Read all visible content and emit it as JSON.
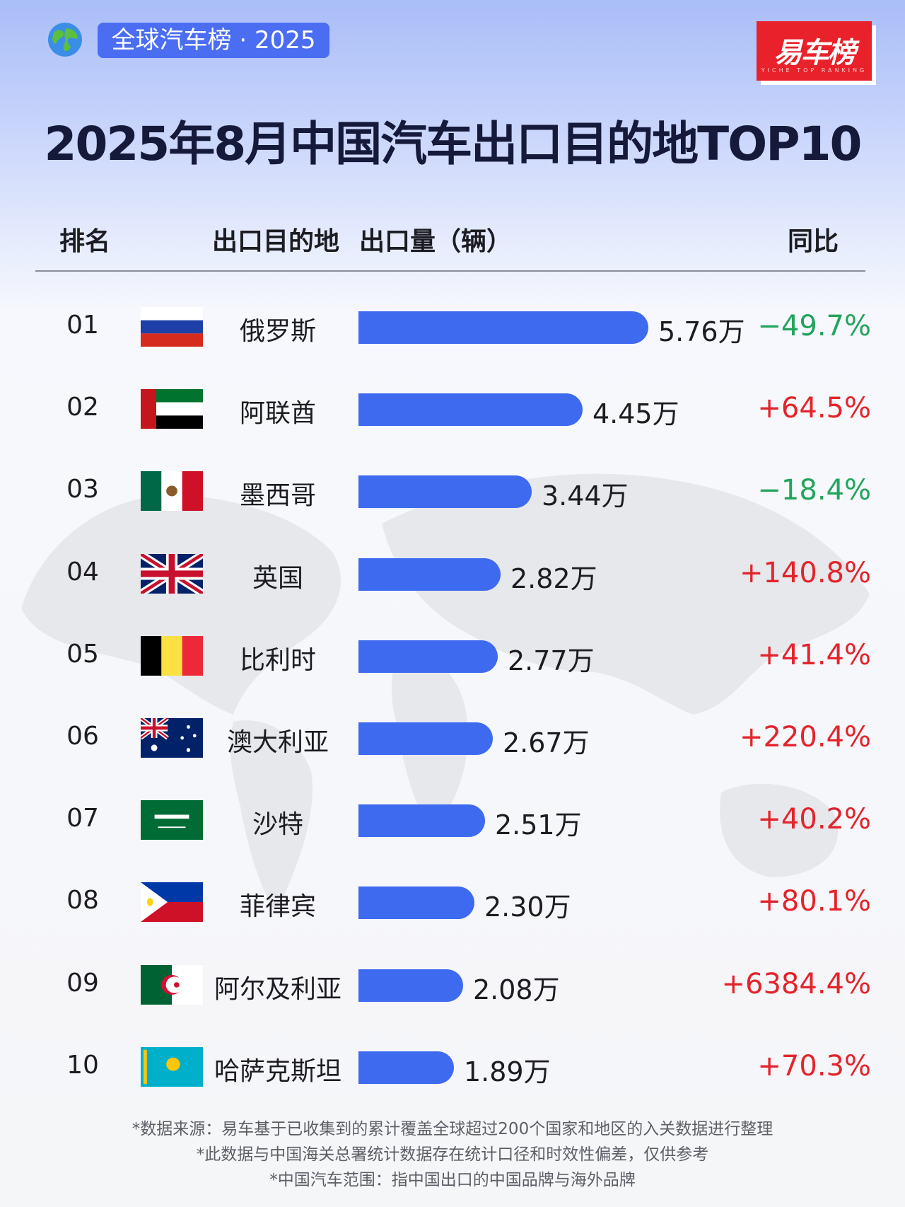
{
  "header": {
    "tag": "全球汽车榜 · 2025",
    "logo": "易车榜",
    "logo_sub": "YICHE TOP RANKING",
    "title": "2025年8月中国汽车出口目的地TOP10"
  },
  "columns": {
    "rank": "排名",
    "destination": "出口目的地",
    "volume": "出口量（辆）",
    "yoy": "同比"
  },
  "colors": {
    "bar": "#3e6af0",
    "positive": "#e3242b",
    "negative": "#22a45d"
  },
  "chart_data": {
    "type": "bar",
    "orientation": "horizontal",
    "value_unit": "万辆",
    "categories": [
      "俄罗斯",
      "阿联酋",
      "墨西哥",
      "英国",
      "比利时",
      "澳大利亚",
      "沙特",
      "菲律宾",
      "阿尔及利亚",
      "哈萨克斯坦"
    ],
    "series": [
      {
        "values": [
          5.76,
          4.45,
          3.44,
          2.82,
          2.77,
          2.67,
          2.51,
          2.3,
          2.08,
          1.89
        ]
      }
    ],
    "rows": [
      {
        "rank": "01",
        "country": "俄罗斯",
        "flag": "russia-flag",
        "value": 5.76,
        "value_label": "5.76万",
        "yoy": "−49.7%",
        "yoy_sign": "negative"
      },
      {
        "rank": "02",
        "country": "阿联酋",
        "flag": "uae-flag",
        "value": 4.45,
        "value_label": "4.45万",
        "yoy": "+64.5%",
        "yoy_sign": "positive"
      },
      {
        "rank": "03",
        "country": "墨西哥",
        "flag": "mexico-flag",
        "value": 3.44,
        "value_label": "3.44万",
        "yoy": "−18.4%",
        "yoy_sign": "negative"
      },
      {
        "rank": "04",
        "country": "英国",
        "flag": "uk-flag",
        "value": 2.82,
        "value_label": "2.82万",
        "yoy": "+140.8%",
        "yoy_sign": "positive"
      },
      {
        "rank": "05",
        "country": "比利时",
        "flag": "belgium-flag",
        "value": 2.77,
        "value_label": "2.77万",
        "yoy": "+41.4%",
        "yoy_sign": "positive"
      },
      {
        "rank": "06",
        "country": "澳大利亚",
        "flag": "australia-flag",
        "value": 2.67,
        "value_label": "2.67万",
        "yoy": "+220.4%",
        "yoy_sign": "positive"
      },
      {
        "rank": "07",
        "country": "沙特",
        "flag": "saudi-flag",
        "value": 2.51,
        "value_label": "2.51万",
        "yoy": "+40.2%",
        "yoy_sign": "positive"
      },
      {
        "rank": "08",
        "country": "菲律宾",
        "flag": "philippines-flag",
        "value": 2.3,
        "value_label": "2.30万",
        "yoy": "+80.1%",
        "yoy_sign": "positive"
      },
      {
        "rank": "09",
        "country": "阿尔及利亚",
        "flag": "algeria-flag",
        "value": 2.08,
        "value_label": "2.08万",
        "yoy": "+6384.4%",
        "yoy_sign": "positive"
      },
      {
        "rank": "10",
        "country": "哈萨克斯坦",
        "flag": "kazakhstan-flag",
        "value": 1.89,
        "value_label": "1.89万",
        "yoy": "+70.3%",
        "yoy_sign": "positive"
      }
    ]
  },
  "footer": {
    "note1": "*数据来源：易车基于已收集到的累计覆盖全球超过200个国家和地区的入关数据进行整理",
    "note2": "*此数据与中国海关总署统计数据存在统计口径和时效性偏差，仅供参考",
    "note3": "*中国汽车范围：指中国出口的中国品牌与海外品牌"
  }
}
